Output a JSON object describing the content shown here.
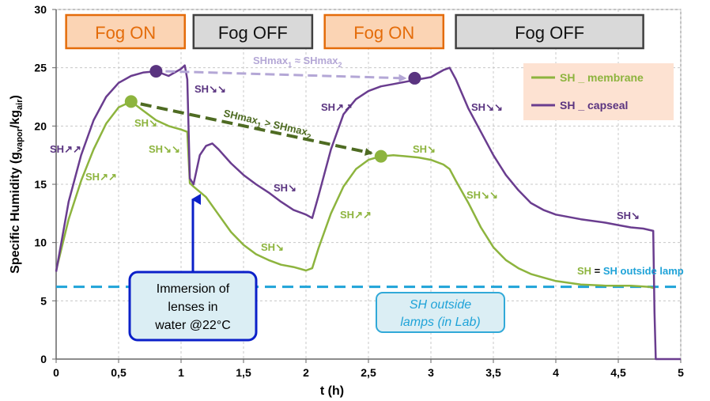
{
  "chart_data": {
    "type": "line",
    "xlabel": "t (h)",
    "ylabel": "Specific Humidity (g",
    "ylabel_sub1": "vapor",
    "ylabel_mid": "/kg",
    "ylabel_sub2": "air",
    "ylabel_end": ")",
    "xlim": [
      0,
      5
    ],
    "ylim": [
      0,
      30
    ],
    "grid": true,
    "x_ticks": [
      0,
      0.5,
      1,
      1.5,
      2,
      2.5,
      3,
      3.5,
      4,
      4.5,
      5
    ],
    "x_tick_labels": [
      "0",
      "0,5",
      "1",
      "1,5",
      "2",
      "2,5",
      "3",
      "3,5",
      "4",
      "4,5",
      "5"
    ],
    "y_ticks": [
      0,
      5,
      10,
      15,
      20,
      25,
      30
    ],
    "y_tick_labels": [
      "0",
      "5",
      "10",
      "15",
      "20",
      "25",
      "30"
    ],
    "legend_position": "top-right",
    "series": [
      {
        "name": "SH _ membrane",
        "color": "#8db43e",
        "x": [
          0,
          0.05,
          0.1,
          0.2,
          0.3,
          0.4,
          0.5,
          0.6,
          0.7,
          0.8,
          0.9,
          1.0,
          1.05,
          1.07,
          1.1,
          1.2,
          1.3,
          1.4,
          1.5,
          1.6,
          1.7,
          1.8,
          1.9,
          2.0,
          2.05,
          2.1,
          2.2,
          2.3,
          2.4,
          2.5,
          2.6,
          2.7,
          2.8,
          2.9,
          3.0,
          3.1,
          3.15,
          3.2,
          3.3,
          3.4,
          3.5,
          3.6,
          3.7,
          3.8,
          3.9,
          4.0,
          4.2,
          4.4,
          4.6,
          4.75,
          4.78
        ],
        "y": [
          7.6,
          9.8,
          12.0,
          15.3,
          18.0,
          20.2,
          21.6,
          22.1,
          21.3,
          20.5,
          20.0,
          19.7,
          19.5,
          15.1,
          14.8,
          13.9,
          12.4,
          10.9,
          9.8,
          9.0,
          8.5,
          8.1,
          7.9,
          7.6,
          7.8,
          9.5,
          12.5,
          14.8,
          16.3,
          17.1,
          17.4,
          17.5,
          17.4,
          17.3,
          17.1,
          16.7,
          16.3,
          15.3,
          13.4,
          11.3,
          9.6,
          8.5,
          7.8,
          7.3,
          7.0,
          6.7,
          6.4,
          6.3,
          6.3,
          6.2,
          6.1
        ]
      },
      {
        "name": "SH _ capseal",
        "color": "#6a3d8f",
        "x": [
          0,
          0.05,
          0.1,
          0.2,
          0.3,
          0.4,
          0.5,
          0.6,
          0.7,
          0.8,
          0.9,
          1.0,
          1.03,
          1.05,
          1.07,
          1.1,
          1.15,
          1.2,
          1.25,
          1.3,
          1.4,
          1.5,
          1.6,
          1.7,
          1.8,
          1.9,
          2.0,
          2.05,
          2.1,
          2.2,
          2.3,
          2.4,
          2.5,
          2.6,
          2.7,
          2.8,
          2.9,
          3.0,
          3.05,
          3.1,
          3.15,
          3.2,
          3.3,
          3.4,
          3.5,
          3.6,
          3.7,
          3.8,
          3.9,
          4.0,
          4.2,
          4.4,
          4.5,
          4.6,
          4.7,
          4.78,
          4.79,
          4.8,
          5.0
        ],
        "y": [
          7.5,
          10.5,
          13.5,
          17.5,
          20.5,
          22.5,
          23.7,
          24.3,
          24.6,
          24.7,
          24.3,
          24.9,
          25.2,
          24.0,
          15.5,
          15.0,
          17.5,
          18.3,
          18.5,
          18.0,
          16.8,
          15.8,
          15.0,
          14.3,
          13.5,
          12.8,
          12.4,
          12.1,
          14.0,
          18.0,
          21.0,
          22.3,
          23.0,
          23.4,
          23.6,
          23.8,
          24.0,
          24.2,
          24.5,
          24.8,
          25.0,
          24.0,
          21.5,
          19.5,
          17.5,
          15.8,
          14.5,
          13.4,
          12.8,
          12.4,
          12.0,
          11.7,
          11.5,
          11.3,
          11.2,
          11.0,
          4.0,
          0.0,
          0.0
        ]
      }
    ],
    "reference_line": {
      "label": "SH outside lamps (in Lab)",
      "y": 6.2,
      "color": "#1fa3d8"
    },
    "markers": [
      {
        "series": "SH _ membrane",
        "x": 0.6,
        "y": 22.1,
        "color": "#8db43e"
      },
      {
        "series": "SH _ membrane",
        "x": 2.6,
        "y": 17.4,
        "color": "#8db43e"
      },
      {
        "series": "SH _ capseal",
        "x": 0.8,
        "y": 24.7,
        "color": "#5a3480"
      },
      {
        "series": "SH _ capseal",
        "x": 2.87,
        "y": 24.1,
        "color": "#5a3480"
      }
    ],
    "phases": [
      {
        "label": "Fog ON",
        "state": "on",
        "x_start": 0.08,
        "x_end": 1.03
      },
      {
        "label": "Fog OFF",
        "state": "off",
        "x_start": 1.1,
        "x_end": 2.05
      },
      {
        "label": "Fog ON",
        "state": "on",
        "x_start": 2.15,
        "x_end": 3.1
      },
      {
        "label": "Fog OFF",
        "state": "off",
        "x_start": 3.2,
        "x_end": 4.7
      }
    ],
    "annotations": {
      "shmax_membrane": "SHmax",
      "shmax_membrane_sub1": "1",
      "shmax_membrane_mid": " > SHmax",
      "shmax_membrane_sub2": "2",
      "shmax_capseal": "SHmax",
      "shmax_capseal_sub1": "1",
      "shmax_capseal_mid": " ≈ SHmax",
      "shmax_capseal_sub2": "2",
      "sh_label": "SH",
      "up_arrows": "↗↗",
      "down_arrows": "↘↘",
      "down_arrow": "↘",
      "up_arrow": "↗",
      "sh_equals": "SH = ",
      "sh_outside_lamp": "SH outside lamp",
      "immersion_line1": "Immersion of",
      "immersion_line2": "lenses in",
      "immersion_line3": "water @22°C",
      "outside_line1": "SH outside",
      "outside_line2": "lamps (in Lab)"
    },
    "colors": {
      "fog_on_fill": "#fbd4b4",
      "fog_on_border": "#e46c0a",
      "fog_off_fill": "#d9d9d9",
      "fog_off_border": "#404040",
      "legend_bg": "#fde2d2",
      "immersion_border": "#0b20c9",
      "immersion_fill": "#dbeef4",
      "outside_border": "#31a9d8",
      "outside_fill": "#dbeef4",
      "arrow_membrane": "#4e6b22",
      "arrow_capseal": "#b4a7d6"
    }
  }
}
